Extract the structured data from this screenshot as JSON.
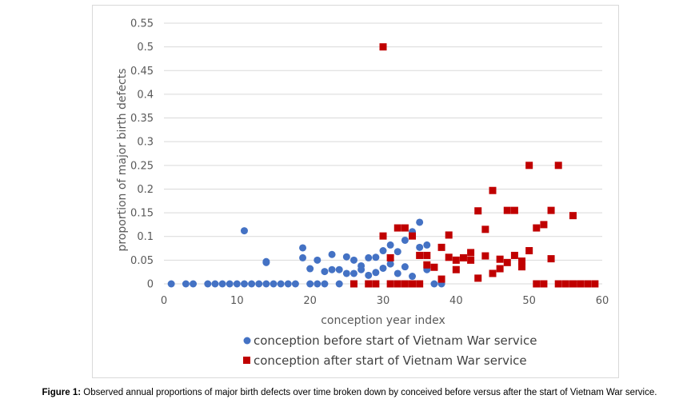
{
  "chart_data": {
    "type": "scatter",
    "title": "",
    "xlabel": "conception year index",
    "ylabel": "proportion of major birth defects",
    "xlim": [
      0,
      60
    ],
    "ylim": [
      0,
      0.55
    ],
    "x_ticks": [
      0,
      10,
      20,
      30,
      40,
      50,
      60
    ],
    "y_ticks": [
      0,
      0.05,
      0.1,
      0.15,
      0.2,
      0.25,
      0.3,
      0.35,
      0.4,
      0.45,
      0.5,
      0.55
    ],
    "grid": "horizontal",
    "legend_position": "bottom",
    "series": [
      {
        "name": "conception before start of Vietnam War service",
        "marker": "circle",
        "color": "#4472c4",
        "points": [
          [
            1,
            0
          ],
          [
            3,
            0
          ],
          [
            4,
            0
          ],
          [
            6,
            0
          ],
          [
            7,
            0
          ],
          [
            8,
            0
          ],
          [
            9,
            0
          ],
          [
            10,
            0
          ],
          [
            11,
            0
          ],
          [
            12,
            0
          ],
          [
            13,
            0
          ],
          [
            14,
            0
          ],
          [
            15,
            0
          ],
          [
            16,
            0
          ],
          [
            17,
            0
          ],
          [
            18,
            0
          ],
          [
            11,
            0.112
          ],
          [
            14,
            0.045
          ],
          [
            14,
            0.047
          ],
          [
            19,
            0.076
          ],
          [
            19,
            0.055
          ],
          [
            20,
            0.032
          ],
          [
            21,
            0.05
          ],
          [
            20,
            0
          ],
          [
            21,
            0
          ],
          [
            22,
            0
          ],
          [
            22,
            0.026
          ],
          [
            23,
            0.03
          ],
          [
            23,
            0.062
          ],
          [
            24,
            0.03
          ],
          [
            24,
            0
          ],
          [
            25,
            0.057
          ],
          [
            25,
            0.022
          ],
          [
            26,
            0.05
          ],
          [
            26,
            0.022
          ],
          [
            27,
            0.038
          ],
          [
            27,
            0.03
          ],
          [
            28,
            0.055
          ],
          [
            28,
            0.018
          ],
          [
            29,
            0.056
          ],
          [
            29,
            0.024
          ],
          [
            30,
            0.07
          ],
          [
            30,
            0.033
          ],
          [
            31,
            0.082
          ],
          [
            31,
            0.042
          ],
          [
            32,
            0.068
          ],
          [
            32,
            0.022
          ],
          [
            33,
            0.092
          ],
          [
            33,
            0.036
          ],
          [
            34,
            0.11
          ],
          [
            34,
            0.016
          ],
          [
            35,
            0.13
          ],
          [
            35,
            0.077
          ],
          [
            36,
            0.082
          ],
          [
            36,
            0.03
          ],
          [
            37,
            0
          ],
          [
            38,
            0
          ]
        ]
      },
      {
        "name": "conception after start of Vietnam War service",
        "marker": "square",
        "color": "#c00000",
        "points": [
          [
            30,
            0.5
          ],
          [
            26,
            0
          ],
          [
            28,
            0
          ],
          [
            29,
            0
          ],
          [
            30,
            0.101
          ],
          [
            31,
            0.055
          ],
          [
            31,
            0
          ],
          [
            32,
            0.118
          ],
          [
            32,
            0
          ],
          [
            33,
            0.118
          ],
          [
            33,
            0
          ],
          [
            34,
            0.101
          ],
          [
            34,
            0
          ],
          [
            35,
            0.06
          ],
          [
            35,
            0
          ],
          [
            36,
            0.06
          ],
          [
            36,
            0.04
          ],
          [
            37,
            0.035
          ],
          [
            38,
            0.077
          ],
          [
            38,
            0.01
          ],
          [
            39,
            0.103
          ],
          [
            39,
            0.056
          ],
          [
            40,
            0.05
          ],
          [
            40,
            0.03
          ],
          [
            41,
            0.055
          ],
          [
            42,
            0.066
          ],
          [
            42,
            0.05
          ],
          [
            43,
            0.154
          ],
          [
            43,
            0.012
          ],
          [
            44,
            0.115
          ],
          [
            44,
            0.059
          ],
          [
            45,
            0.197
          ],
          [
            45,
            0.022
          ],
          [
            46,
            0.052
          ],
          [
            46,
            0.032
          ],
          [
            47,
            0.155
          ],
          [
            47,
            0.045
          ],
          [
            48,
            0.155
          ],
          [
            48,
            0.06
          ],
          [
            49,
            0.048
          ],
          [
            49,
            0.036
          ],
          [
            50,
            0.25
          ],
          [
            50,
            0.07
          ],
          [
            51,
            0.118
          ],
          [
            51,
            0
          ],
          [
            52,
            0.125
          ],
          [
            52,
            0
          ],
          [
            53,
            0.155
          ],
          [
            53,
            0.053
          ],
          [
            54,
            0.25
          ],
          [
            54,
            0
          ],
          [
            55,
            0
          ],
          [
            56,
            0.144
          ],
          [
            56,
            0
          ],
          [
            57,
            0
          ],
          [
            58,
            0
          ],
          [
            59,
            0
          ]
        ]
      }
    ]
  },
  "caption": {
    "label": "Figure 1:",
    "text": " Observed annual proportions of major birth defects over time broken down by conceived before versus after the start of Vietnam War service."
  }
}
